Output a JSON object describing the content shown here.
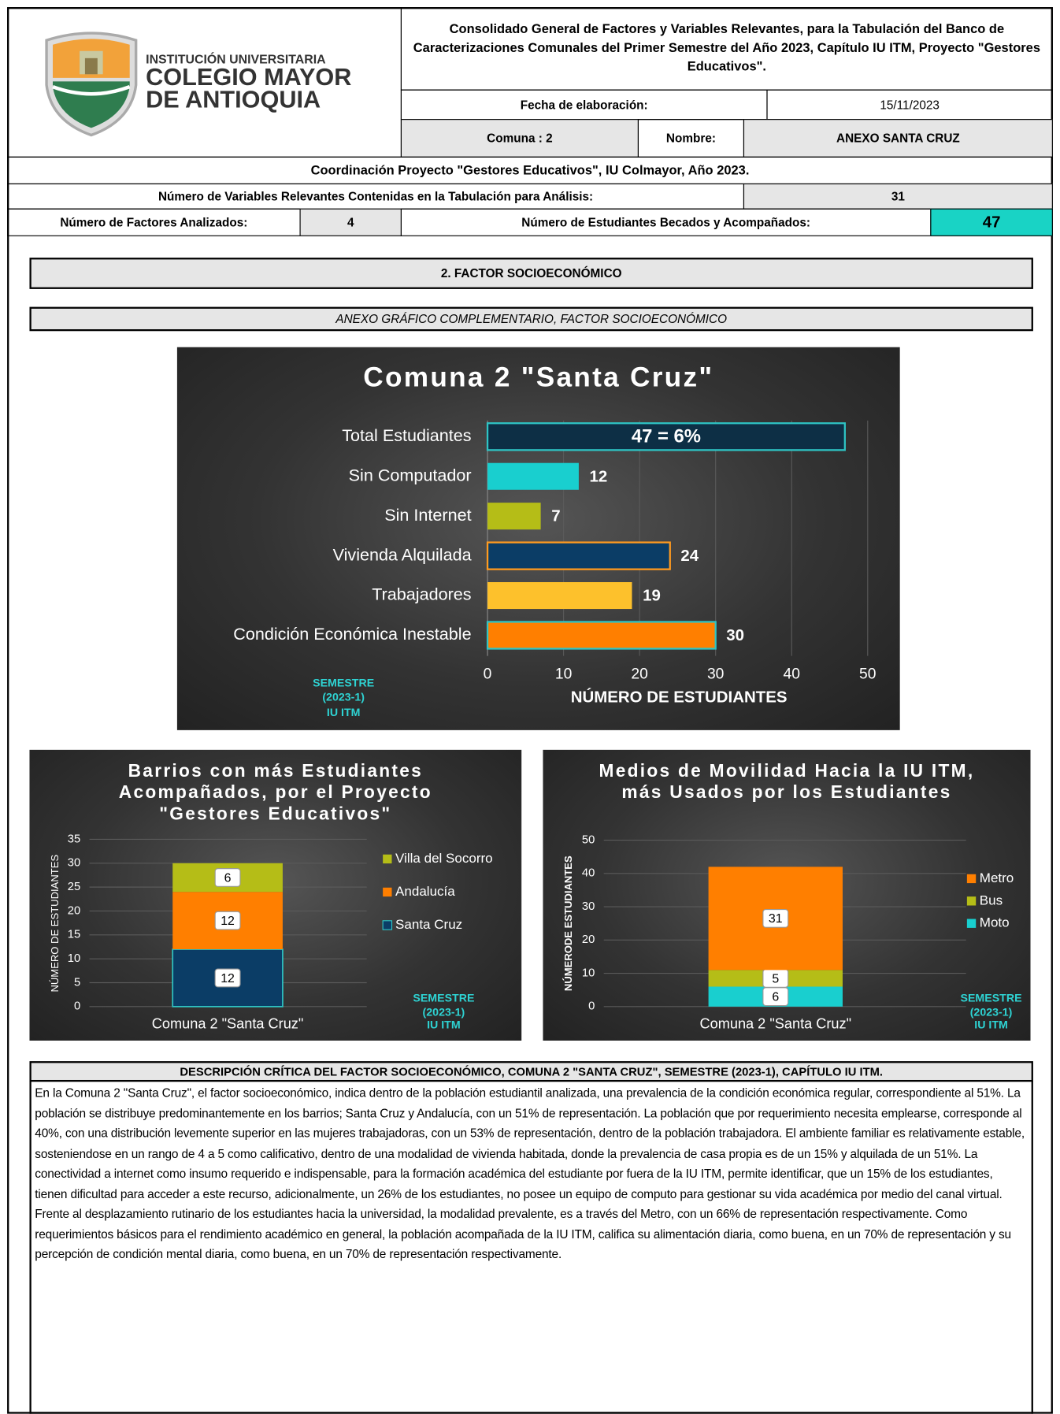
{
  "header": {
    "logo": [
      "INSTITUCIÓN UNIVERSITARIA",
      "COLEGIO MAYOR",
      "DE ANTIOQUIA"
    ],
    "title": "Consolidado General de Factores y Variables Relevantes, para la Tabulación del Banco de Caracterizaciones Comunales del Primer Semestre del Año 2023, Capítulo IU ITM, Proyecto \"Gestores Educativos\".",
    "fecha_label": "Fecha de elaboración:",
    "fecha": "15/11/2023",
    "comuna": "Comuna : 2",
    "nombre_label": "Nombre:",
    "nombre": "ANEXO SANTA CRUZ",
    "coordinacion": "Coordinación Proyecto \"Gestores Educativos\", IU Colmayor, Año 2023.",
    "variables_label": "Número de Variables Relevantes Contenidas en la Tabulación para Análisis:",
    "variables": 31,
    "factores_label": "Número de Factores Analizados:",
    "factores": 4,
    "estudiantes_label": "Número de Estudiantes Becados y Acompañados:",
    "estudiantes": 47
  },
  "section": "2. FACTOR SOCIOECONÓMICO",
  "annex": "ANEXO GRÁFICO COMPLEMENTARIO, FACTOR SOCIOECONÓMICO",
  "chart_data": [
    {
      "type": "hbar",
      "title": "Comuna 2 \"Santa Cruz\"",
      "categories": [
        "Total Estudiantes",
        "Sin Computador",
        "Sin Internet",
        "Vivienda Alquilada",
        "Trabajadores",
        "Condición Económica Inestable"
      ],
      "values": [
        47,
        12,
        7,
        24,
        19,
        30
      ],
      "value_labels": [
        "47 = 6%",
        "12",
        "7",
        "24",
        "19",
        "30"
      ],
      "colors": [
        "#0d2f45",
        "#19cfcf",
        "#b5bd17",
        "#0b3d66",
        "#fdc12c",
        "#ff7f00"
      ],
      "edgecolors": [
        "#2ec4c4",
        null,
        null,
        "#ff9a1f",
        null,
        "#2ec4c4"
      ],
      "xlim": [
        0,
        50
      ],
      "xticks": [
        0,
        10,
        20,
        30,
        40,
        50
      ],
      "xlabel": "NÚMERO DE ESTUDIANTES",
      "grid": true,
      "annotation": [
        "SEMESTRE",
        "(2023-1)",
        "IU ITM"
      ]
    },
    {
      "type": "stacked_bar",
      "title": "Barrios con más Estudiantes Acompañados, por el Proyecto \"Gestores Educativos\"",
      "categories": [
        "Comuna 2 \"Santa Cruz\""
      ],
      "series": [
        {
          "name": "Santa Cruz",
          "color": "#0b3d66",
          "values": [
            12
          ]
        },
        {
          "name": "Andalucía",
          "color": "#ff7f00",
          "values": [
            12
          ]
        },
        {
          "name": "Villa del Socorro",
          "color": "#b5bd17",
          "values": [
            6
          ]
        }
      ],
      "ylim": [
        0,
        35
      ],
      "yticks": [
        0,
        5,
        10,
        15,
        20,
        25,
        30,
        35
      ],
      "ylabel": "NÚMERO DE ESTUDIANTES",
      "grid": true,
      "legend": "right",
      "annotation": [
        "SEMESTRE",
        "(2023-1)",
        "IU ITM"
      ]
    },
    {
      "type": "stacked_bar",
      "title": "Medios de Movilidad Hacia la IU ITM, más Usados por los Estudiantes",
      "categories": [
        "Comuna 2 \"Santa Cruz\""
      ],
      "series": [
        {
          "name": "Moto",
          "color": "#19cfcf",
          "values": [
            6
          ]
        },
        {
          "name": "Bus",
          "color": "#b5bd17",
          "values": [
            5
          ]
        },
        {
          "name": "Metro",
          "color": "#ff7f00",
          "values": [
            31
          ]
        }
      ],
      "ylim": [
        0,
        50
      ],
      "yticks": [
        0,
        10,
        20,
        30,
        40,
        50
      ],
      "ylabel": "NÚMERODE ESTUDIANTES",
      "grid": true,
      "legend": "right",
      "annotation": [
        "SEMESTRE",
        "(2023-1)",
        "IU ITM"
      ]
    }
  ],
  "description": {
    "title": "DESCRIPCIÓN CRÍTICA DEL FACTOR SOCIOECONÓMICO, COMUNA 2 \"SANTA CRUZ\", SEMESTRE (2023-1), CAPÍTULO IU ITM.",
    "text": "En la Comuna 2 \"Santa Cruz\", el factor socioeconómico, indica dentro de la población estudiantil analizada, una prevalencia de la condición económica regular, correspondiente al 51%. La población se distribuye predominantemente en los barrios; Santa Cruz y Andalucía, con un 51% de representación. La población que por requerimiento necesita emplearse, corresponde al 40%, con una distribución levemente superior en las mujeres trabajadoras, con un 53% de representación, dentro de la población trabajadora. El ambiente familiar es relativamente estable, sosteniendose en un rango de 4 a 5 como calificativo, dentro de una modalidad de vivienda habitada, donde la prevalencia de casa propia es de un 15% y alquilada de un 51%. La conectividad a internet como insumo requerido e indispensable, para la formación académica del estudiante por fuera de la IU ITM, permite identificar, que un 15% de los estudiantes, tienen dificultad para acceder a este recurso, adicionalmente, un 26% de los estudiantes, no posee un equipo de computo para gestionar su vida académica por medio del canal virtual. Frente al desplazamiento rutinario de los estudiantes hacia la universidad, la modalidad prevalente, es a través del Metro, con un 66% de representación respectivamente. Como requerimientos básicos para el rendimiento académico en general, la población acompañada de la IU ITM, califica su alimentación diaria, como buena, en un 70% de representación y su percepción de condición mental diaria, como buena, en un 70% de representación respectivamente."
  }
}
